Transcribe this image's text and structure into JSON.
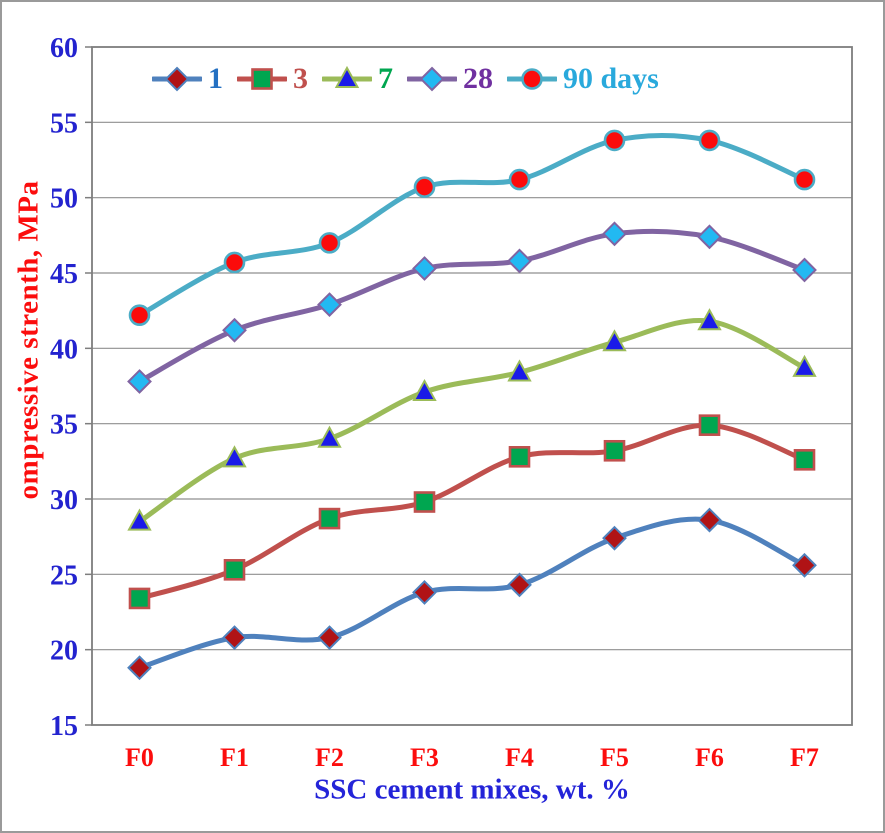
{
  "chart_data": {
    "type": "line",
    "title": "",
    "xlabel": "SSC cement mixes, wt. %",
    "ylabel": "ompressive strenth, MPa",
    "categories": [
      "F0",
      "F1",
      "F2",
      "F3",
      "F4",
      "F5",
      "F6",
      "F7"
    ],
    "ylim": [
      15,
      60
    ],
    "ytick_step": 5,
    "ytick_labels": [
      15,
      20,
      25,
      30,
      35,
      40,
      45,
      50,
      55,
      60
    ],
    "grid": "horizontal-only",
    "legend_position": "top",
    "series": [
      {
        "name": "1",
        "legend_label": "1",
        "label_color": "#2470c2",
        "line_color": "#4f81bd",
        "marker": "diamond",
        "marker_fill": "#b01315",
        "marker_stroke": "#4f81bd",
        "values": [
          18.8,
          20.8,
          20.8,
          23.8,
          24.3,
          27.4,
          28.6,
          25.6
        ]
      },
      {
        "name": "3",
        "legend_label": "3",
        "label_color": "#c0504d",
        "line_color": "#c0504d",
        "marker": "square",
        "marker_fill": "#00a650",
        "marker_stroke": "#c0504d",
        "values": [
          23.4,
          25.3,
          28.7,
          29.8,
          32.8,
          33.2,
          34.9,
          32.6
        ]
      },
      {
        "name": "7",
        "legend_label": "7",
        "label_color": "#00a650",
        "line_color": "#9bbb59",
        "marker": "triangle",
        "marker_fill": "#1a1ae8",
        "marker_stroke": "#9bbb59",
        "values": [
          28.5,
          32.7,
          34.0,
          37.1,
          38.4,
          40.4,
          41.8,
          38.7
        ]
      },
      {
        "name": "28",
        "legend_label": "28",
        "label_color": "#7030a0",
        "line_color": "#8064a2",
        "marker": "diamond",
        "marker_fill": "#22b9f2",
        "marker_stroke": "#8064a2",
        "values": [
          37.8,
          41.2,
          42.9,
          45.3,
          45.8,
          47.6,
          47.4,
          45.2
        ]
      },
      {
        "name": "90 days",
        "legend_label": "90 days",
        "label_color": "#29a9dc",
        "line_color": "#4bacc6",
        "marker": "circle",
        "marker_fill": "#fb0b0b",
        "marker_stroke": "#4bacc6",
        "values": [
          42.2,
          45.7,
          47.0,
          50.7,
          51.2,
          53.8,
          53.8,
          51.2
        ]
      }
    ],
    "colors": {
      "ytick_text": "#2323cf",
      "xtick_text": "#fc0d0d",
      "ylabel_text": "#fb0d0d",
      "xlabel_text": "#2424d8",
      "gridline": "#8f8f8f",
      "plot_border": "#7e7e7e",
      "background": "#ffffff"
    }
  }
}
